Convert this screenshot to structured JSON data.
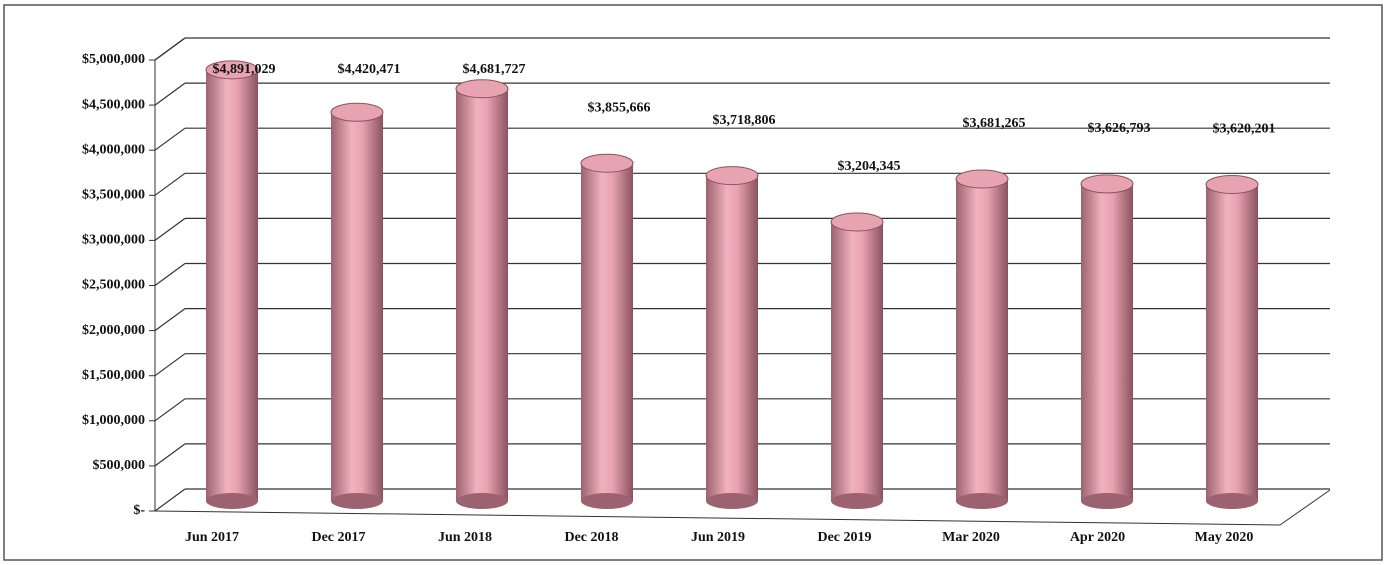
{
  "chart_data": {
    "type": "bar",
    "categories": [
      "Jun 2017",
      "Dec 2017",
      "Jun 2018",
      "Dec 2018",
      "Jun 2019",
      "Dec 2019",
      "Mar 2020",
      "Apr 2020",
      "May 2020"
    ],
    "values": [
      4891029,
      4420471,
      4681727,
      3855666,
      3718806,
      3204345,
      3681265,
      3626793,
      3620201
    ],
    "value_labels": [
      "$4,891,029",
      "$4,420,471",
      "$4,681,727",
      "$3,855,666",
      "$3,718,806",
      "$3,204,345",
      "$3,681,265",
      "$3,626,793",
      "$3,620,201"
    ],
    "color": "#e8a3b0",
    "ylim": [
      0,
      5000000
    ],
    "yticks": [
      {
        "value": 0,
        "label": "$-"
      },
      {
        "value": 500000,
        "label": "$500,000"
      },
      {
        "value": 1000000,
        "label": "$1,000,000"
      },
      {
        "value": 1500000,
        "label": "$1,500,000"
      },
      {
        "value": 2000000,
        "label": "$2,000,000"
      },
      {
        "value": 2500000,
        "label": "$2,500,000"
      },
      {
        "value": 3000000,
        "label": "$3,000,000"
      },
      {
        "value": 3500000,
        "label": "$3,500,000"
      },
      {
        "value": 4000000,
        "label": "$4,000,000"
      },
      {
        "value": 4500000,
        "label": "$4,500,000"
      },
      {
        "value": 5000000,
        "label": "$5,000,000"
      }
    ],
    "grid": true
  }
}
